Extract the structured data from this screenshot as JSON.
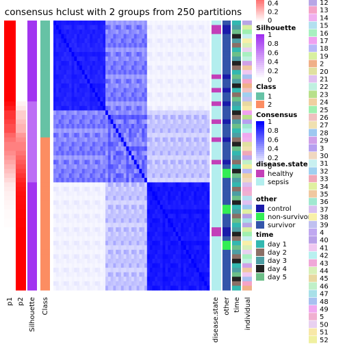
{
  "chart_data": {
    "type": "heatmap",
    "title": "consensus hclust with 2 groups from 250 partitions",
    "n_samples": 60,
    "consensus_blocks": [
      {
        "from": 0,
        "to": 20,
        "within": 0.92
      },
      {
        "from": 20,
        "to": 36,
        "within": 0.7
      },
      {
        "from": 36,
        "to": 60,
        "within": 0.96
      }
    ],
    "p1": [
      1,
      1,
      1,
      1,
      1,
      1,
      1,
      1,
      1,
      1,
      1,
      1,
      1,
      1,
      1,
      1,
      1,
      1,
      0.95,
      0.9,
      0.8,
      0.8,
      0.75,
      0.7,
      0.7,
      0.6,
      0.55,
      0.5,
      0.5,
      0.45,
      0.4,
      0.35,
      0.3,
      0.25,
      0.2,
      0.15,
      0.1,
      0.08,
      0.06,
      0.05,
      0.04,
      0.03,
      0.02,
      0.02,
      0.01,
      0.01,
      0,
      0,
      0,
      0,
      0,
      0,
      0,
      0,
      0,
      0,
      0,
      0,
      0,
      0
    ],
    "silhouette": [
      0.98,
      0.98,
      0.98,
      0.98,
      0.98,
      0.98,
      0.98,
      0.98,
      0.98,
      0.98,
      0.98,
      0.98,
      0.98,
      0.98,
      0.98,
      0.98,
      0.98,
      0.98,
      0.7,
      0.7,
      0.7,
      0.7,
      0.7,
      0.7,
      0.7,
      0.7,
      0.7,
      0.7,
      0.7,
      0.7,
      0.7,
      0.7,
      0.7,
      0.7,
      0.7,
      0.7,
      0.98,
      0.98,
      0.98,
      0.98,
      0.98,
      0.98,
      0.98,
      0.98,
      0.98,
      0.98,
      0.98,
      0.98,
      0.98,
      0.98,
      0.98,
      0.98,
      0.98,
      0.98,
      0.98,
      0.98,
      0.98,
      0.98,
      0.98,
      0.98
    ],
    "class": [
      1,
      1,
      1,
      1,
      1,
      1,
      1,
      1,
      1,
      1,
      1,
      1,
      1,
      1,
      1,
      1,
      1,
      1,
      1,
      1,
      1,
      1,
      1,
      1,
      1,
      1,
      2,
      2,
      2,
      2,
      2,
      2,
      2,
      2,
      2,
      2,
      2,
      2,
      2,
      2,
      2,
      2,
      2,
      2,
      2,
      2,
      2,
      2,
      2,
      2,
      2,
      2,
      2,
      2,
      2,
      2,
      2,
      2,
      2,
      2
    ],
    "disease_state": [
      "sepsis",
      "healthy",
      "healthy",
      "sepsis",
      "sepsis",
      "sepsis",
      "sepsis",
      "sepsis",
      "sepsis",
      "sepsis",
      "sepsis",
      "sepsis",
      "healthy",
      "sepsis",
      "sepsis",
      "healthy",
      "sepsis",
      "sepsis",
      "healthy",
      "sepsis",
      "sepsis",
      "sepsis",
      "healthy",
      "sepsis",
      "sepsis",
      "sepsis",
      "healthy",
      "sepsis",
      "sepsis",
      "sepsis",
      "sepsis",
      "healthy",
      "sepsis",
      "sepsis",
      "sepsis",
      "sepsis",
      "sepsis",
      "sepsis",
      "sepsis",
      "sepsis",
      "sepsis",
      "sepsis",
      "sepsis",
      "sepsis",
      "sepsis",
      "sepsis",
      "healthy",
      "healthy",
      "sepsis",
      "sepsis",
      "sepsis",
      "sepsis",
      "sepsis",
      "sepsis",
      "sepsis",
      "sepsis",
      "sepsis",
      "sepsis",
      "sepsis",
      "sepsis"
    ],
    "other": [
      "survivor",
      "control",
      "control",
      "survivor",
      "survivor",
      "survivor",
      "survivor",
      "survivor",
      "survivor",
      "survivor",
      "survivor",
      "survivor",
      "control",
      "survivor",
      "survivor",
      "control",
      "survivor",
      "survivor",
      "control",
      "survivor",
      "survivor",
      "survivor",
      "control",
      "survivor",
      "survivor",
      "survivor",
      "control",
      "survivor",
      "survivor",
      "survivor",
      "survivor",
      "control",
      "survivor",
      "non-survivor",
      "non-survivor",
      "survivor",
      "survivor",
      "survivor",
      "survivor",
      "survivor",
      "survivor",
      "non-survivor",
      "non-survivor",
      "survivor",
      "survivor",
      "survivor",
      "control",
      "control",
      "survivor",
      "non-survivor",
      "non-survivor",
      "survivor",
      "survivor",
      "survivor",
      "survivor",
      "survivor",
      "survivor",
      "survivor",
      "survivor",
      "survivor"
    ],
    "time": [
      "day 1",
      "day 3",
      "day 5",
      "day 4",
      "day 3",
      "day 2",
      "day 1",
      "day 5",
      "day 3",
      "day 4",
      "day 2",
      "day 1",
      "day 5",
      "day 3",
      "day 4",
      "day 1",
      "day 2",
      "day 5",
      "day 3",
      "day 1",
      "day 4",
      "day 2",
      "day 3",
      "day 5",
      "day 1",
      "day 3",
      "day 2",
      "day 4",
      "day 5",
      "day 1",
      "day 3",
      "day 2",
      "day 1",
      "day 4",
      "day 5",
      "day 3",
      "day 1",
      "day 2",
      "day 3",
      "day 5",
      "day 4",
      "day 1",
      "day 3",
      "day 2",
      "day 5",
      "day 1",
      "day 3",
      "day 4",
      "day 2",
      "day 1",
      "day 5",
      "day 3",
      "day 2",
      "day 4",
      "day 1",
      "day 3",
      "day 5",
      "day 4",
      "day 2",
      "day 1"
    ],
    "legends": {
      "consensus_partial_ticks": [
        "0.4",
        "0.2",
        "0"
      ],
      "silhouette": {
        "title": "Silhouette",
        "ticks": [
          "1",
          "0.8",
          "0.6",
          "0.4",
          "0.2",
          "0"
        ]
      },
      "class": {
        "title": "Class",
        "labels": [
          "1",
          "2"
        ],
        "colors": [
          "#66c2a5",
          "#fc8d62"
        ]
      },
      "consensus": {
        "title": "Consensus",
        "ticks": [
          "1",
          "0.8",
          "0.6",
          "0.4",
          "0.2",
          "0"
        ]
      },
      "disease_state": {
        "title": "disease.state",
        "labels": [
          "healthy",
          "sepsis"
        ],
        "colors": [
          "#c33fb8",
          "#b3eeee"
        ]
      },
      "other": {
        "title": "other",
        "labels": [
          "control",
          "non-survivor",
          "survivor"
        ],
        "colors": [
          "#1a1aaa",
          "#33ee55",
          "#3355aa"
        ]
      },
      "time": {
        "title": "time",
        "labels": [
          "day 1",
          "day 2",
          "day 3",
          "day 4",
          "day 5"
        ],
        "colors": [
          "#33b8b0",
          "#8b6f66",
          "#4d9ea4",
          "#222222",
          "#6cbf88"
        ]
      },
      "individual": {
        "labels": [
          "12",
          "13",
          "14",
          "15",
          "16",
          "17",
          "18",
          "19",
          "2",
          "20",
          "21",
          "22",
          "23",
          "24",
          "25",
          "26",
          "27",
          "28",
          "29",
          "3",
          "30",
          "31",
          "32",
          "33",
          "34",
          "35",
          "36",
          "37",
          "38",
          "39",
          "4",
          "40",
          "41",
          "42",
          "43",
          "44",
          "45",
          "46",
          "47",
          "48",
          "49",
          "5",
          "50",
          "51",
          "52"
        ],
        "colors": [
          "#b8a6e6",
          "#f5a3c7",
          "#f0b0f0",
          "#b3e0f0",
          "#a8f0c0",
          "#f0a0f0",
          "#b8b8f8",
          "#d8f0a0",
          "#f0b088",
          "#e0e0a0",
          "#e0c0f0",
          "#c0f0e0",
          "#b8e08a",
          "#f0d0a0",
          "#a0f0b0",
          "#f0c0c0",
          "#f0e0b0",
          "#9ec8f0",
          "#d0a0e8",
          "#b6a0f0",
          "#f0d8c0",
          "#c8f0f0",
          "#a0d0f0",
          "#f0a8b8",
          "#e0f0a0",
          "#f0c8a0",
          "#a0e8d0",
          "#d8c0f0",
          "#f8f0a8",
          "#c0c0f0",
          "#c0a8f0",
          "#b8a0e8",
          "#f0c8f0",
          "#b8f0f0",
          "#f0a8d8",
          "#d8f0b8",
          "#e8d8a0",
          "#c0f0c8",
          "#a8e0e8",
          "#a8c0f0",
          "#f0a8f0",
          "#f0b0d0",
          "#e8d0f0",
          "#f8e8a8",
          "#f0f0a0"
        ]
      }
    },
    "column_labels": [
      "p1",
      "p2",
      "Silhouette",
      "Class",
      "disease.state",
      "other",
      "time",
      "individual"
    ]
  }
}
